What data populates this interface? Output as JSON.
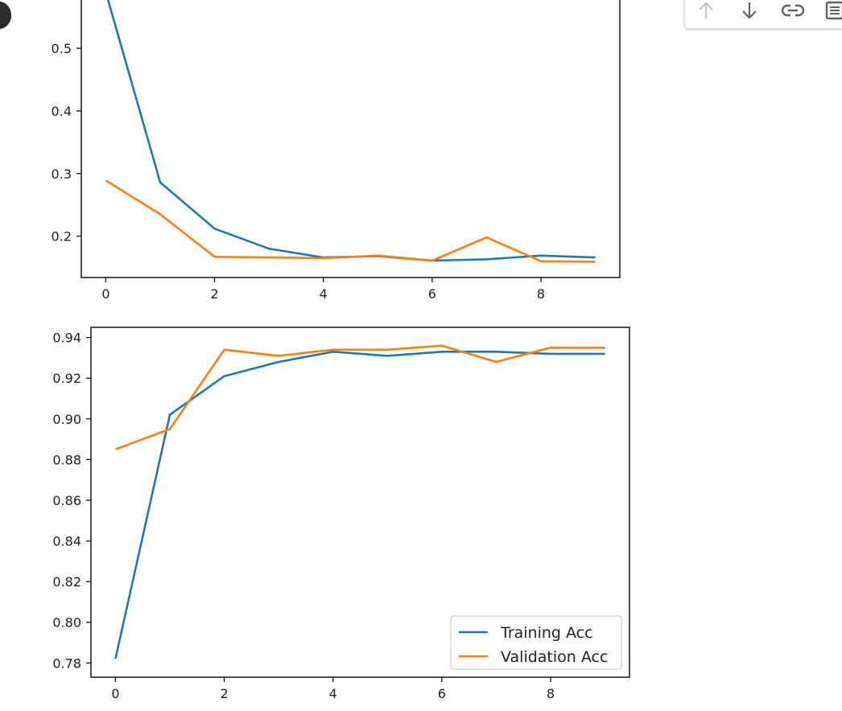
{
  "toolbar": {
    "icons": [
      "arrow-up-icon",
      "arrow-down-icon",
      "link-icon",
      "notes-icon"
    ],
    "colors": {
      "enabled": "#5f6368",
      "disabled": "#c4c7c5"
    }
  },
  "colors": {
    "training": "#1f77b4",
    "validation": "#ff7f0e",
    "frame": "#222222"
  },
  "chart_data": [
    {
      "type": "line",
      "x": [
        0,
        1,
        2,
        3,
        4,
        5,
        6,
        7,
        8,
        9
      ],
      "xticks": [
        "0",
        "2",
        "4",
        "6",
        "8"
      ],
      "xtick_values": [
        0,
        2,
        4,
        6,
        8
      ],
      "yticks": [
        "0.2",
        "0.3",
        "0.4",
        "0.5"
      ],
      "ytick_values": [
        0.2,
        0.3,
        0.4,
        0.5
      ],
      "xlim": [
        -0.45,
        9.45
      ],
      "ylim": [
        0.134,
        0.59
      ],
      "grid": false,
      "series": [
        {
          "values": [
            0.59,
            0.286,
            0.212,
            0.18,
            0.166,
            0.168,
            0.161,
            0.163,
            0.169,
            0.166
          ]
        },
        {
          "values": [
            0.289,
            0.235,
            0.167,
            0.166,
            0.165,
            0.169,
            0.161,
            0.198,
            0.16,
            0.159
          ]
        }
      ]
    },
    {
      "type": "line",
      "x": [
        0,
        1,
        2,
        3,
        4,
        5,
        6,
        7,
        8,
        9
      ],
      "xticks": [
        "0",
        "2",
        "4",
        "6",
        "8"
      ],
      "xtick_values": [
        0,
        2,
        4,
        6,
        8
      ],
      "yticks": [
        "0.78",
        "0.80",
        "0.82",
        "0.84",
        "0.86",
        "0.88",
        "0.90",
        "0.92",
        "0.94"
      ],
      "ytick_values": [
        0.78,
        0.8,
        0.82,
        0.84,
        0.86,
        0.88,
        0.9,
        0.92,
        0.94
      ],
      "xlim": [
        -0.45,
        9.45
      ],
      "ylim": [
        0.773,
        0.945
      ],
      "grid": false,
      "legend": "lower-right",
      "series": [
        {
          "name": "Training Acc",
          "values": [
            0.782,
            0.902,
            0.921,
            0.928,
            0.933,
            0.931,
            0.933,
            0.933,
            0.932,
            0.932
          ]
        },
        {
          "name": "Validation Acc",
          "values": [
            0.885,
            0.895,
            0.934,
            0.931,
            0.934,
            0.934,
            0.936,
            0.928,
            0.935,
            0.935
          ]
        }
      ]
    }
  ]
}
